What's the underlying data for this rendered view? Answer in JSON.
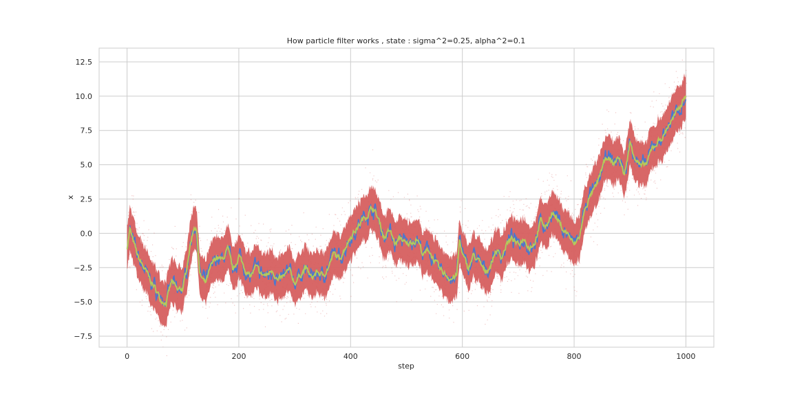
{
  "chart_data": {
    "type": "line",
    "title": "How particle filter works , state : sigma^2=0.25, alpha^2=0.1",
    "xlabel": "step",
    "ylabel": "x",
    "xlim": [
      -50,
      1050
    ],
    "ylim": [
      -8.3,
      13.5
    ],
    "xticks": [
      0,
      200,
      400,
      600,
      800,
      1000
    ],
    "yticks": [
      -7.5,
      -5.0,
      -2.5,
      0.0,
      2.5,
      5.0,
      7.5,
      10.0,
      12.5
    ],
    "xtick_labels": [
      "0",
      "200",
      "400",
      "600",
      "800",
      "1000"
    ],
    "ytick_labels": [
      "−7.5",
      "−5.0",
      "−2.5",
      "0.0",
      "2.5",
      "5.0",
      "7.5",
      "10.0",
      "12.5"
    ],
    "grid": true,
    "legend": "none",
    "colors": {
      "particles": "#d65f5f",
      "true_state": "#4878d0",
      "estimate": "#b5c95a",
      "grid": "#cccccc",
      "spine": "#cccccc"
    },
    "particle_band_halfwidth": 1.6,
    "series_anchors": {
      "x": [
        0,
        5,
        10,
        20,
        30,
        40,
        50,
        60,
        70,
        80,
        90,
        100,
        105,
        110,
        120,
        125,
        130,
        140,
        150,
        160,
        170,
        180,
        190,
        200,
        210,
        220,
        230,
        240,
        250,
        260,
        270,
        280,
        290,
        300,
        310,
        320,
        330,
        340,
        350,
        360,
        370,
        380,
        390,
        400,
        410,
        420,
        430,
        440,
        450,
        460,
        470,
        480,
        490,
        500,
        510,
        520,
        530,
        540,
        550,
        560,
        570,
        580,
        590,
        595,
        600,
        610,
        620,
        630,
        640,
        650,
        660,
        670,
        680,
        690,
        700,
        710,
        720,
        730,
        740,
        750,
        760,
        770,
        780,
        790,
        800,
        810,
        820,
        830,
        840,
        850,
        860,
        870,
        880,
        890,
        900,
        910,
        920,
        930,
        940,
        950,
        960,
        970,
        980,
        990,
        1000
      ],
      "y": [
        -1.0,
        0.3,
        -0.5,
        -1.8,
        -2.5,
        -3.3,
        -4.0,
        -4.8,
        -5.0,
        -3.5,
        -4.2,
        -4.0,
        -3.0,
        -1.5,
        0.6,
        0.1,
        -3.0,
        -3.7,
        -2.5,
        -1.7,
        -2.0,
        -1.2,
        -2.8,
        -1.6,
        -2.5,
        -3.2,
        -2.5,
        -3.0,
        -3.1,
        -2.6,
        -3.5,
        -3.2,
        -2.7,
        -3.6,
        -3.0,
        -2.5,
        -3.3,
        -2.8,
        -3.1,
        -2.5,
        -1.5,
        -1.9,
        -1.0,
        -0.2,
        0.3,
        0.9,
        1.4,
        1.9,
        1.0,
        -0.3,
        0.2,
        -0.8,
        -0.3,
        -0.9,
        -0.6,
        -0.4,
        -1.6,
        -1.2,
        -2.0,
        -2.7,
        -3.0,
        -3.3,
        -3.1,
        -0.5,
        -1.5,
        -2.6,
        -1.6,
        -2.1,
        -2.8,
        -2.4,
        -1.2,
        -1.7,
        -0.7,
        -0.4,
        -0.9,
        -0.3,
        -1.0,
        -0.6,
        0.9,
        0.4,
        1.6,
        1.0,
        0.3,
        -0.1,
        -0.9,
        -0.2,
        1.9,
        2.8,
        3.4,
        4.8,
        5.6,
        5.0,
        5.6,
        4.2,
        6.6,
        5.5,
        4.8,
        5.1,
        6.2,
        6.7,
        7.1,
        8.0,
        8.5,
        9.3,
        10.2
      ]
    }
  }
}
